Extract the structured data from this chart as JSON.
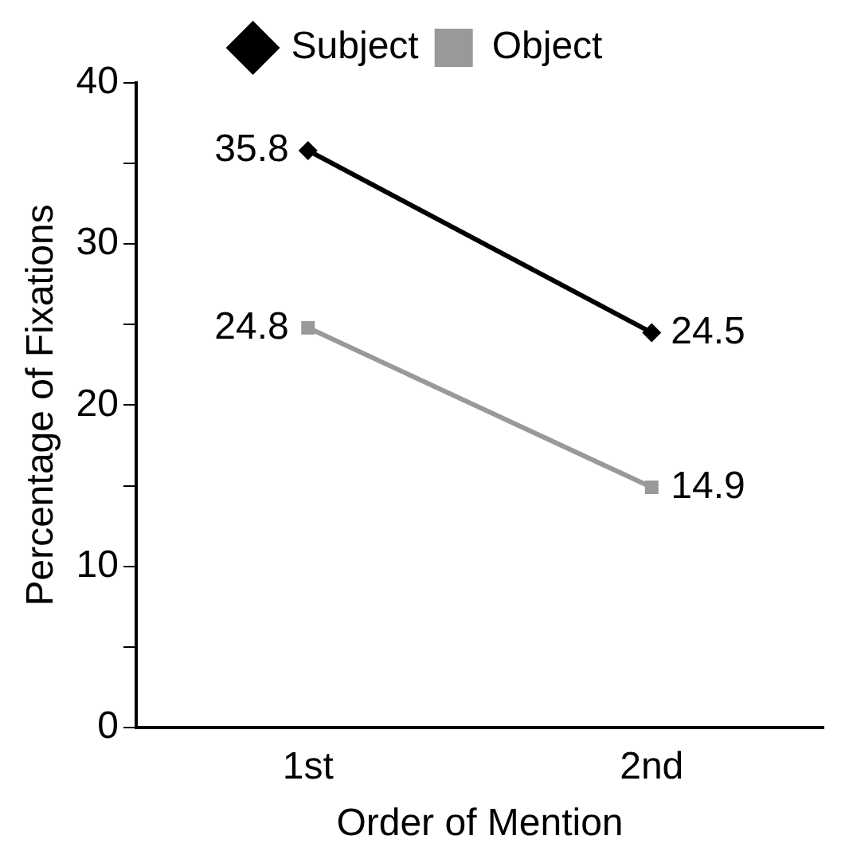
{
  "chart_data": {
    "type": "line",
    "xlabel": "Order of Mention",
    "ylabel": "Percentage of Fixations",
    "categories": [
      "1st",
      "2nd"
    ],
    "series": [
      {
        "name": "Subject",
        "color": "#000000",
        "values": [
          35.8,
          24.5
        ],
        "marker": "diamond"
      },
      {
        "name": "Object",
        "color": "#999999",
        "values": [
          24.8,
          14.9
        ],
        "marker": "square"
      }
    ],
    "ylim": [
      0,
      40
    ],
    "yticks": [
      0,
      {
        "value": 5,
        "label": null
      },
      10,
      {
        "value": 15,
        "label": null
      },
      20,
      {
        "value": 25,
        "label": null
      },
      30,
      {
        "value": 35,
        "label": null
      },
      40
    ],
    "grid": false,
    "legend": "top",
    "data_labels": true,
    "line_style": "solid"
  }
}
